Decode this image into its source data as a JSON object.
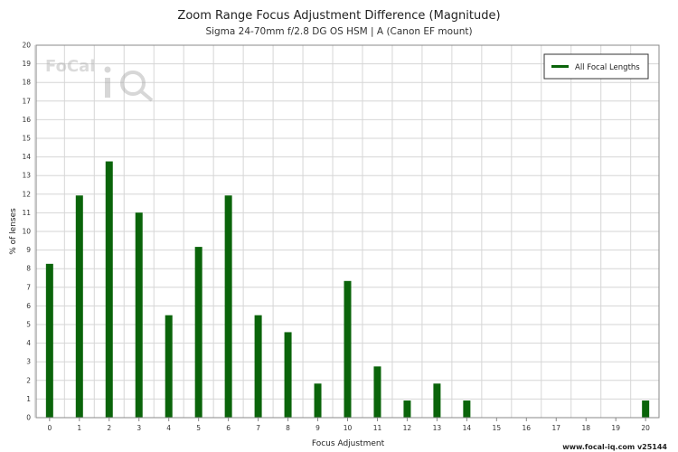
{
  "chart_data": {
    "type": "bar",
    "title": "Zoom Range Focus Adjustment Difference (Magnitude)",
    "subtitle": "Sigma 24-70mm f/2.8 DG OS HSM | A (Canon EF mount)",
    "xlabel": "Focus Adjustment",
    "ylabel": "% of lenses",
    "xlim": [
      0,
      20
    ],
    "ylim": [
      0,
      20
    ],
    "x_ticks": [
      0,
      1,
      2,
      3,
      4,
      5,
      6,
      7,
      8,
      9,
      10,
      11,
      12,
      13,
      14,
      15,
      16,
      17,
      18,
      19,
      20
    ],
    "y_ticks": [
      0,
      1,
      2,
      3,
      4,
      5,
      6,
      7,
      8,
      9,
      10,
      11,
      12,
      13,
      14,
      15,
      16,
      17,
      18,
      19,
      20
    ],
    "grid": true,
    "legend_position": "top-right",
    "series": [
      {
        "name": "All Focal Lengths",
        "color": "#0a640a",
        "x": [
          0,
          1,
          2,
          3,
          4,
          5,
          6,
          7,
          8,
          9,
          10,
          11,
          12,
          13,
          14,
          15,
          16,
          17,
          18,
          19,
          20
        ],
        "values": [
          8.26,
          11.93,
          13.76,
          11.01,
          5.5,
          9.17,
          11.93,
          5.5,
          4.59,
          1.83,
          7.34,
          2.75,
          0.92,
          1.83,
          0.92,
          0,
          0,
          0,
          0,
          0,
          0.92
        ]
      }
    ]
  },
  "watermark": {
    "text": "FoCal",
    "icon": "iq-magnifier-icon"
  },
  "footer": "www.focal-iq.com  v25144"
}
